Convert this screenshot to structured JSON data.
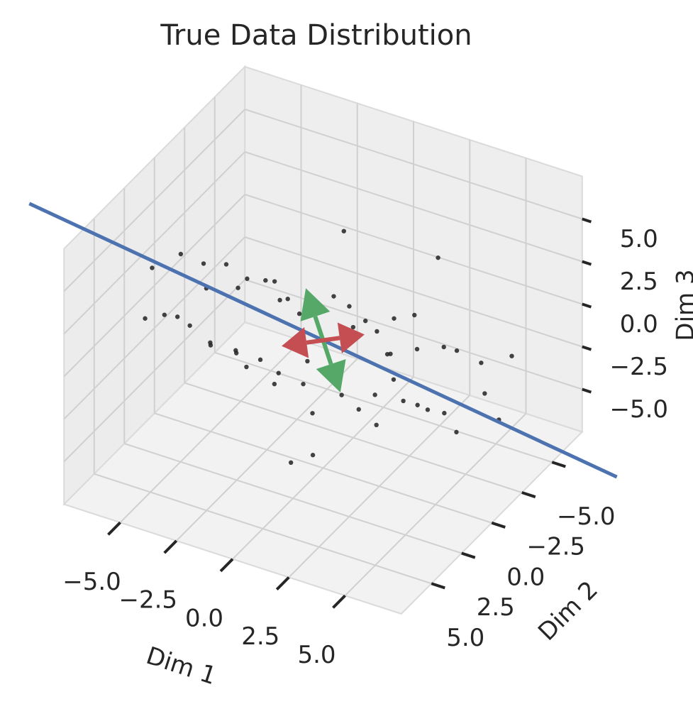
{
  "chart_data": {
    "type": "scatter3d",
    "title": "True Data Distribution",
    "xlabel": "Dim 1",
    "ylabel": "Dim 2",
    "zlabel": "Dim 3",
    "xlim": [
      -7.5,
      7.5
    ],
    "ylim": [
      -7.5,
      7.5
    ],
    "zlim": [
      -7.5,
      7.5
    ],
    "xticks": [
      {
        "value": -5,
        "label": "−5.0"
      },
      {
        "value": -2.5,
        "label": "−2.5"
      },
      {
        "value": 0,
        "label": "0.0"
      },
      {
        "value": 2.5,
        "label": "2.5"
      },
      {
        "value": 5,
        "label": "5.0"
      }
    ],
    "yticks": [
      {
        "value": -5,
        "label": "−5.0"
      },
      {
        "value": -2.5,
        "label": "−2.5"
      },
      {
        "value": 0,
        "label": "0.0"
      },
      {
        "value": 2.5,
        "label": "2.5"
      },
      {
        "value": 5,
        "label": "5.0"
      }
    ],
    "zticks": [
      {
        "value": -5,
        "label": "−5.0"
      },
      {
        "value": -2.5,
        "label": "−2.5"
      },
      {
        "value": 0,
        "label": "0.0"
      },
      {
        "value": 2.5,
        "label": "2.5"
      },
      {
        "value": 5,
        "label": "5.0"
      }
    ],
    "grid": true,
    "color": "#222222",
    "x": [
      -6.8,
      -6.2,
      -5.9,
      -5.5,
      -5.1,
      -4.8,
      -4.6,
      -4.2,
      -4.0,
      -3.7,
      -3.5,
      -3.3,
      -3.0,
      -2.8,
      -2.6,
      -2.4,
      -2.2,
      -2.0,
      -1.8,
      -1.6,
      -1.4,
      -1.2,
      -1.0,
      -0.8,
      -0.6,
      -0.4,
      -0.2,
      0.0,
      0.2,
      0.4,
      0.6,
      0.8,
      1.0,
      1.2,
      1.4,
      1.6,
      1.8,
      2.0,
      2.2,
      2.4,
      2.6,
      2.8,
      3.0,
      3.3,
      3.6,
      3.9,
      4.2,
      4.5,
      4.8,
      5.1,
      5.5,
      5.9,
      6.3,
      6.8,
      -3.1,
      1.1,
      2.7,
      -0.9,
      0.5,
      3.8
    ],
    "y": [
      1.5,
      3.2,
      0.8,
      2.9,
      0.4,
      2.1,
      3.5,
      0.2,
      1.9,
      -0.6,
      2.8,
      0.9,
      1.6,
      -1.2,
      2.4,
      0.3,
      1.1,
      -0.8,
      3.0,
      0.6,
      -1.5,
      1.8,
      0.1,
      2.2,
      -2.0,
      0.9,
      -0.4,
      1.3,
      -1.8,
      0.2,
      2.0,
      -1.0,
      -2.6,
      0.7,
      -0.9,
      -2.9,
      0.4,
      -1.6,
      -0.2,
      -3.1,
      -1.0,
      0.8,
      -2.2,
      -0.5,
      -3.3,
      -1.4,
      0.0,
      -2.7,
      -1.1,
      -3.6,
      -0.8,
      -2.4,
      -3.9,
      -1.9,
      3.9,
      2.9,
      -4.5,
      -3.4,
      3.6,
      1.5
    ],
    "z": [
      2.4,
      0.9,
      3.1,
      1.2,
      2.6,
      0.3,
      1.9,
      2.8,
      -0.5,
      1.6,
      0.2,
      2.3,
      -0.9,
      1.4,
      0.0,
      2.7,
      -1.3,
      1.0,
      -0.2,
      2.1,
      0.6,
      -1.8,
      1.2,
      -0.7,
      0.9,
      -2.1,
      1.5,
      -0.3,
      0.8,
      -1.5,
      -2.6,
      0.4,
      -0.9,
      -2.2,
      1.1,
      -0.1,
      -3.0,
      -1.1,
      -2.4,
      0.3,
      -1.9,
      -3.2,
      -0.8,
      -2.5,
      -1.2,
      -3.4,
      -2.0,
      -0.6,
      -3.0,
      -1.7,
      -3.6,
      -2.3,
      -1.0,
      -3.1,
      4.5,
      -4.2,
      2.8,
      3.6,
      -4.4,
      1.9
    ],
    "line": {
      "color": "#4c72b0",
      "x": [
        -11,
        11
      ],
      "y": [
        3.85,
        -3.85
      ],
      "z": [
        6.05,
        -6.05
      ]
    },
    "arrows": [
      {
        "color": "#55a868",
        "x": [
          0,
          -0.5
        ],
        "y": [
          0,
          0.5
        ],
        "z": [
          0,
          3.2
        ]
      },
      {
        "color": "#55a868",
        "x": [
          0,
          0.5
        ],
        "y": [
          0,
          -0.5
        ],
        "z": [
          0,
          -3.2
        ]
      },
      {
        "color": "#c44e52",
        "x": [
          0,
          1.2
        ],
        "y": [
          0,
          -1.2
        ],
        "z": [
          0,
          0
        ]
      },
      {
        "color": "#c44e52",
        "x": [
          0,
          -1.2
        ],
        "y": [
          0,
          1.2
        ],
        "z": [
          0,
          0
        ]
      }
    ]
  }
}
